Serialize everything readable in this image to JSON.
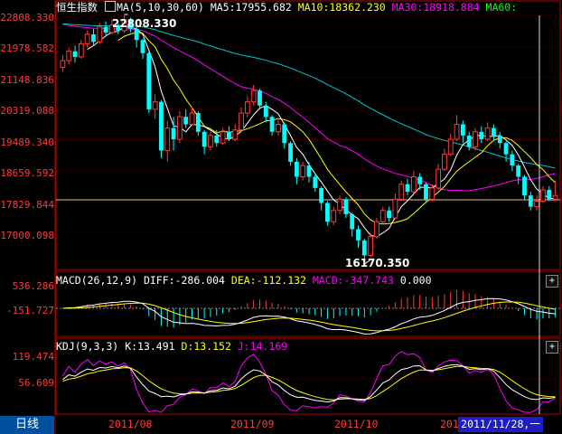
{
  "header": {
    "index_name": "恒生指数",
    "ma_label": "MA(5,10,30,60)",
    "ma5": "MA5:17955.682",
    "ma10": "MA10:18362.230",
    "ma30": "MA30:18918.884",
    "ma60": "MA60:"
  },
  "macd": {
    "label": "MACD(26,12,9)",
    "diff": "DIFF:-286.004",
    "dea": "DEA:-112.132",
    "macd": "MACD:-347.743",
    "zero": "0.000"
  },
  "kdj": {
    "label": "KDJ(9,3,3)",
    "k": "K:13.491",
    "d": "D:13.152",
    "j": "J:14.169"
  },
  "y_axis_price": [
    "22808.330",
    "21978.582",
    "21148.836",
    "20319.088",
    "19489.340",
    "18659.592",
    "17829.844",
    "17000.098"
  ],
  "y_axis_macd": [
    "536.286",
    "-151.727"
  ],
  "y_axis_kdj": [
    "119.474",
    "56.609"
  ],
  "x_axis": [
    "2011/08",
    "2011/09",
    "2011/10",
    "2011/"
  ],
  "annotations": {
    "high": "22808.330",
    "low": "16170.350"
  },
  "bottom": {
    "period_tab": "日线",
    "cursor_date": "2011/11/28,一"
  },
  "colors": {
    "ma5": "#ffffff",
    "ma10": "#ffff00",
    "ma30": "#ff00ff",
    "ma60": "#00ff00",
    "up": "#ff3b3b",
    "down": "#00ffff"
  },
  "chart_data": {
    "type": "candlestick",
    "price_ylim": [
      16170.35,
      22808.33
    ],
    "candles": [
      {
        "o": 21420,
        "c": 21600,
        "h": 21750,
        "l": 21300
      },
      {
        "o": 21600,
        "c": 21850,
        "h": 21950,
        "l": 21500
      },
      {
        "o": 21850,
        "c": 21700,
        "h": 22000,
        "l": 21550
      },
      {
        "o": 21700,
        "c": 22050,
        "h": 22150,
        "l": 21650
      },
      {
        "o": 22050,
        "c": 22300,
        "h": 22400,
        "l": 21950
      },
      {
        "o": 22300,
        "c": 22100,
        "h": 22450,
        "l": 22000
      },
      {
        "o": 22100,
        "c": 22500,
        "h": 22600,
        "l": 22050
      },
      {
        "o": 22500,
        "c": 22350,
        "h": 22650,
        "l": 22250
      },
      {
        "o": 22350,
        "c": 22550,
        "h": 22700,
        "l": 22300
      },
      {
        "o": 22550,
        "c": 22400,
        "h": 22600,
        "l": 22300
      },
      {
        "o": 22400,
        "c": 22700,
        "h": 22808,
        "l": 22350
      },
      {
        "o": 22700,
        "c": 22450,
        "h": 22750,
        "l": 22350
      },
      {
        "o": 22450,
        "c": 22150,
        "h": 22500,
        "l": 21950
      },
      {
        "o": 22150,
        "c": 21800,
        "h": 22200,
        "l": 21650
      },
      {
        "o": 21800,
        "c": 20300,
        "h": 21850,
        "l": 20200
      },
      {
        "o": 20300,
        "c": 20500,
        "h": 20700,
        "l": 20050
      },
      {
        "o": 20500,
        "c": 19200,
        "h": 20550,
        "l": 19000
      },
      {
        "o": 19200,
        "c": 19800,
        "h": 20000,
        "l": 18900
      },
      {
        "o": 19800,
        "c": 19500,
        "h": 20100,
        "l": 19200
      },
      {
        "o": 19500,
        "c": 20100,
        "h": 20250,
        "l": 19400
      },
      {
        "o": 20100,
        "c": 19900,
        "h": 20300,
        "l": 19800
      },
      {
        "o": 19900,
        "c": 20200,
        "h": 20350,
        "l": 19850
      },
      {
        "o": 20200,
        "c": 19700,
        "h": 20250,
        "l": 19600
      },
      {
        "o": 19700,
        "c": 19300,
        "h": 19750,
        "l": 19100
      },
      {
        "o": 19300,
        "c": 19600,
        "h": 19700,
        "l": 19200
      },
      {
        "o": 19600,
        "c": 19400,
        "h": 19750,
        "l": 19300
      },
      {
        "o": 19400,
        "c": 19700,
        "h": 19800,
        "l": 19350
      },
      {
        "o": 19700,
        "c": 19500,
        "h": 19850,
        "l": 19450
      },
      {
        "o": 19500,
        "c": 19750,
        "h": 19900,
        "l": 19450
      },
      {
        "o": 19750,
        "c": 20200,
        "h": 20350,
        "l": 19700
      },
      {
        "o": 20200,
        "c": 20500,
        "h": 20650,
        "l": 20100
      },
      {
        "o": 20500,
        "c": 20800,
        "h": 20950,
        "l": 20400
      },
      {
        "o": 20800,
        "c": 20400,
        "h": 20850,
        "l": 20300
      },
      {
        "o": 20400,
        "c": 20100,
        "h": 20500,
        "l": 19950
      },
      {
        "o": 20100,
        "c": 19700,
        "h": 20150,
        "l": 19600
      },
      {
        "o": 19700,
        "c": 19900,
        "h": 20050,
        "l": 19600
      },
      {
        "o": 19900,
        "c": 19400,
        "h": 19950,
        "l": 19250
      },
      {
        "o": 19400,
        "c": 18900,
        "h": 19450,
        "l": 18800
      },
      {
        "o": 18900,
        "c": 18500,
        "h": 19000,
        "l": 18300
      },
      {
        "o": 18500,
        "c": 18800,
        "h": 18900,
        "l": 18400
      },
      {
        "o": 18800,
        "c": 18500,
        "h": 18900,
        "l": 18350
      },
      {
        "o": 18500,
        "c": 18200,
        "h": 18600,
        "l": 18100
      },
      {
        "o": 18200,
        "c": 17800,
        "h": 18250,
        "l": 17600
      },
      {
        "o": 17800,
        "c": 17300,
        "h": 17850,
        "l": 17200
      },
      {
        "o": 17300,
        "c": 17600,
        "h": 17700,
        "l": 17200
      },
      {
        "o": 17600,
        "c": 17900,
        "h": 18000,
        "l": 17500
      },
      {
        "o": 17900,
        "c": 17500,
        "h": 17950,
        "l": 17400
      },
      {
        "o": 17500,
        "c": 17100,
        "h": 17550,
        "l": 16900
      },
      {
        "o": 17100,
        "c": 16800,
        "h": 17200,
        "l": 16600
      },
      {
        "o": 16800,
        "c": 16400,
        "h": 16850,
        "l": 16170
      },
      {
        "o": 16400,
        "c": 16900,
        "h": 17000,
        "l": 16350
      },
      {
        "o": 16900,
        "c": 17300,
        "h": 17400,
        "l": 16850
      },
      {
        "o": 17300,
        "c": 17600,
        "h": 17700,
        "l": 17250
      },
      {
        "o": 17600,
        "c": 17400,
        "h": 17700,
        "l": 17300
      },
      {
        "o": 17400,
        "c": 17900,
        "h": 18050,
        "l": 17350
      },
      {
        "o": 17900,
        "c": 18300,
        "h": 18400,
        "l": 17850
      },
      {
        "o": 18300,
        "c": 18100,
        "h": 18450,
        "l": 18000
      },
      {
        "o": 18100,
        "c": 18500,
        "h": 18650,
        "l": 18050
      },
      {
        "o": 18500,
        "c": 18300,
        "h": 18600,
        "l": 18150
      },
      {
        "o": 18300,
        "c": 17900,
        "h": 18350,
        "l": 17800
      },
      {
        "o": 17900,
        "c": 18200,
        "h": 18300,
        "l": 17850
      },
      {
        "o": 18200,
        "c": 18700,
        "h": 18850,
        "l": 18150
      },
      {
        "o": 18700,
        "c": 19100,
        "h": 19250,
        "l": 18650
      },
      {
        "o": 19100,
        "c": 19500,
        "h": 19650,
        "l": 19050
      },
      {
        "o": 19500,
        "c": 19900,
        "h": 20150,
        "l": 19450
      },
      {
        "o": 19900,
        "c": 19600,
        "h": 20000,
        "l": 19400
      },
      {
        "o": 19600,
        "c": 19300,
        "h": 19700,
        "l": 19200
      },
      {
        "o": 19300,
        "c": 19700,
        "h": 19800,
        "l": 19200
      },
      {
        "o": 19700,
        "c": 19500,
        "h": 19850,
        "l": 19400
      },
      {
        "o": 19500,
        "c": 19800,
        "h": 19950,
        "l": 19450
      },
      {
        "o": 19800,
        "c": 19600,
        "h": 19900,
        "l": 19450
      },
      {
        "o": 19600,
        "c": 19400,
        "h": 19700,
        "l": 19250
      },
      {
        "o": 19400,
        "c": 19100,
        "h": 19450,
        "l": 18900
      },
      {
        "o": 19100,
        "c": 18800,
        "h": 19200,
        "l": 18650
      },
      {
        "o": 18800,
        "c": 18500,
        "h": 18850,
        "l": 18300
      },
      {
        "o": 18500,
        "c": 18000,
        "h": 18550,
        "l": 17900
      },
      {
        "o": 18000,
        "c": 17700,
        "h": 18100,
        "l": 17600
      },
      {
        "o": 17700,
        "c": 17850,
        "h": 18000,
        "l": 17600
      },
      {
        "o": 17850,
        "c": 18150,
        "h": 18250,
        "l": 17800
      },
      {
        "o": 18150,
        "c": 17900,
        "h": 18250,
        "l": 17850
      },
      {
        "o": 17900,
        "c": 18000,
        "h": 18400,
        "l": 17850
      }
    ]
  }
}
